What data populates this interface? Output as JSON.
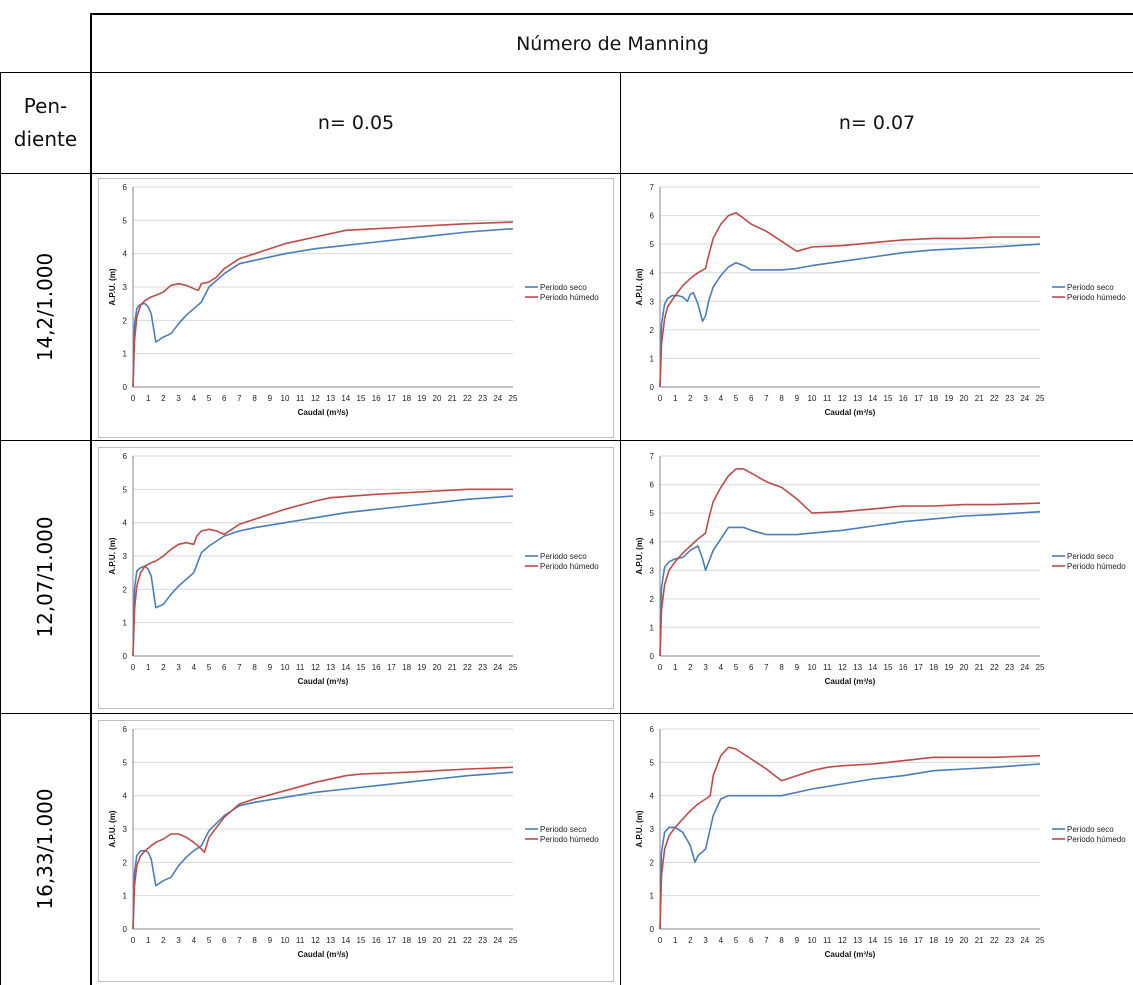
{
  "table": {
    "header": "Número de Manning",
    "pendiente_label_1": "Pen-",
    "pendiente_label_2": "diente",
    "col1": "n= 0.05",
    "col2": "n= 0.07",
    "rows": [
      "14,2/1.000",
      "12,07/1.000",
      "16,33/1.000"
    ]
  },
  "colors": {
    "seco": "#4a7ebb",
    "humedo": "#be4b48",
    "grid": "#d9d9d9",
    "border": "#000000"
  },
  "chart_data": [
    {
      "type": "line",
      "id": "r1c1",
      "xlabel": "Caudal (m³/s)",
      "ylabel": "A.P.U. (m)",
      "xlim": [
        0,
        25
      ],
      "ylim": [
        0,
        6
      ],
      "yticks": [
        0,
        1,
        2,
        3,
        4,
        5,
        6
      ],
      "legend": "right",
      "series": [
        {
          "name": "Periodo seco",
          "x": [
            0,
            0.1,
            0.25,
            0.4,
            0.6,
            0.8,
            1.0,
            1.2,
            1.5,
            2,
            2.5,
            3,
            3.5,
            4,
            4.5,
            5,
            6,
            7,
            8,
            10,
            12,
            14,
            16,
            18,
            20,
            22,
            25
          ],
          "y": [
            0,
            1.9,
            2.35,
            2.45,
            2.5,
            2.5,
            2.4,
            2.2,
            1.35,
            1.5,
            1.6,
            1.9,
            2.15,
            2.35,
            2.55,
            3.0,
            3.4,
            3.7,
            3.8,
            4.0,
            4.15,
            4.25,
            4.35,
            4.45,
            4.55,
            4.65,
            4.75
          ]
        },
        {
          "name": "Periodo húmedo",
          "x": [
            0,
            0.1,
            0.25,
            0.5,
            0.8,
            1.2,
            1.5,
            2,
            2.5,
            3,
            3.5,
            4,
            4.3,
            4.5,
            5,
            5.5,
            6,
            7,
            8,
            10,
            12,
            14,
            16,
            18,
            20,
            22,
            25
          ],
          "y": [
            0,
            1.4,
            2.1,
            2.45,
            2.6,
            2.7,
            2.75,
            2.85,
            3.05,
            3.1,
            3.05,
            2.95,
            2.9,
            3.1,
            3.15,
            3.3,
            3.55,
            3.85,
            4.0,
            4.3,
            4.5,
            4.7,
            4.75,
            4.8,
            4.85,
            4.9,
            4.95
          ]
        }
      ]
    },
    {
      "type": "line",
      "id": "r1c2",
      "xlabel": "Caudal (m³/s)",
      "ylabel": "A.P.U. (m)",
      "xlim": [
        0,
        25
      ],
      "ylim": [
        0,
        7
      ],
      "yticks": [
        0,
        1,
        2,
        3,
        4,
        5,
        6,
        7
      ],
      "legend": "right",
      "series": [
        {
          "name": "Periodo seco",
          "x": [
            0,
            0.1,
            0.3,
            0.5,
            0.8,
            1.2,
            1.5,
            1.8,
            2,
            2.2,
            2.5,
            2.8,
            3,
            3.2,
            3.5,
            4,
            4.5,
            5,
            5.5,
            6,
            7,
            8,
            9,
            10,
            12,
            14,
            16,
            18,
            20,
            22,
            25
          ],
          "y": [
            0,
            2.2,
            2.9,
            3.1,
            3.2,
            3.2,
            3.15,
            3.0,
            3.25,
            3.3,
            2.9,
            2.3,
            2.5,
            3.0,
            3.5,
            3.9,
            4.2,
            4.35,
            4.25,
            4.1,
            4.1,
            4.1,
            4.15,
            4.25,
            4.4,
            4.55,
            4.7,
            4.8,
            4.85,
            4.9,
            5.0
          ]
        },
        {
          "name": "Periodo húmedo",
          "x": [
            0,
            0.1,
            0.3,
            0.5,
            1,
            1.5,
            2,
            2.5,
            3,
            3.2,
            3.5,
            4,
            4.5,
            5,
            5.5,
            6,
            7,
            8,
            9,
            10,
            12,
            14,
            16,
            18,
            20,
            22,
            25
          ],
          "y": [
            0,
            1.5,
            2.4,
            2.8,
            3.2,
            3.55,
            3.8,
            4.0,
            4.15,
            4.6,
            5.2,
            5.7,
            6.0,
            6.1,
            5.9,
            5.7,
            5.45,
            5.1,
            4.75,
            4.9,
            4.95,
            5.05,
            5.15,
            5.2,
            5.2,
            5.25,
            5.25
          ]
        }
      ]
    },
    {
      "type": "line",
      "id": "r2c1",
      "xlabel": "Caudal (m³/s)",
      "ylabel": "A.P.U. (m)",
      "xlim": [
        0,
        25
      ],
      "ylim": [
        0,
        6
      ],
      "yticks": [
        0,
        1,
        2,
        3,
        4,
        5,
        6
      ],
      "legend": "right",
      "series": [
        {
          "name": "Periodo seco",
          "x": [
            0,
            0.1,
            0.25,
            0.5,
            0.8,
            1.0,
            1.2,
            1.5,
            2,
            2.5,
            3,
            3.5,
            4,
            4.5,
            5,
            6,
            7,
            8,
            10,
            12,
            14,
            16,
            18,
            20,
            22,
            25
          ],
          "y": [
            0,
            2.0,
            2.55,
            2.65,
            2.7,
            2.6,
            2.4,
            1.45,
            1.55,
            1.85,
            2.1,
            2.3,
            2.5,
            3.1,
            3.3,
            3.6,
            3.75,
            3.85,
            4.0,
            4.15,
            4.3,
            4.4,
            4.5,
            4.6,
            4.7,
            4.8
          ]
        },
        {
          "name": "Periodo húmedo",
          "x": [
            0,
            0.1,
            0.25,
            0.5,
            0.8,
            1.2,
            1.5,
            2,
            2.5,
            3,
            3.5,
            4,
            4.2,
            4.5,
            5,
            5.5,
            6,
            7,
            8,
            10,
            12,
            13,
            16,
            18,
            20,
            22,
            25
          ],
          "y": [
            0,
            1.4,
            2.1,
            2.5,
            2.7,
            2.8,
            2.85,
            3.0,
            3.2,
            3.35,
            3.4,
            3.35,
            3.6,
            3.75,
            3.8,
            3.75,
            3.65,
            3.95,
            4.1,
            4.4,
            4.65,
            4.75,
            4.85,
            4.9,
            4.95,
            5.0,
            5.0
          ]
        }
      ]
    },
    {
      "type": "line",
      "id": "r2c2",
      "xlabel": "Caudal (m³/s)",
      "ylabel": "A.P.U. (m)",
      "xlim": [
        0,
        25
      ],
      "ylim": [
        0,
        7
      ],
      "yticks": [
        0,
        1,
        2,
        3,
        4,
        5,
        6,
        7
      ],
      "legend": "right",
      "series": [
        {
          "name": "Periodo seco",
          "x": [
            0,
            0.1,
            0.3,
            0.6,
            1,
            1.5,
            2,
            2.5,
            2.8,
            3,
            3.5,
            4,
            4.5,
            5,
            5.5,
            6,
            7,
            8,
            9,
            10,
            12,
            14,
            16,
            18,
            20,
            22,
            25
          ],
          "y": [
            0,
            2.4,
            3.1,
            3.3,
            3.4,
            3.45,
            3.7,
            3.85,
            3.4,
            3.0,
            3.7,
            4.1,
            4.5,
            4.5,
            4.5,
            4.4,
            4.25,
            4.25,
            4.25,
            4.3,
            4.4,
            4.55,
            4.7,
            4.8,
            4.9,
            4.95,
            5.05
          ]
        },
        {
          "name": "Periodo húmedo",
          "x": [
            0,
            0.1,
            0.3,
            0.6,
            1,
            1.5,
            2,
            2.5,
            3,
            3.2,
            3.5,
            4,
            4.5,
            5,
            5.5,
            6,
            7,
            8,
            9,
            10,
            12,
            14,
            16,
            18,
            20,
            22,
            25
          ],
          "y": [
            0,
            1.6,
            2.5,
            3.0,
            3.3,
            3.6,
            3.85,
            4.1,
            4.3,
            4.8,
            5.4,
            5.9,
            6.3,
            6.55,
            6.55,
            6.4,
            6.1,
            5.9,
            5.5,
            5.0,
            5.05,
            5.15,
            5.25,
            5.25,
            5.3,
            5.3,
            5.35
          ]
        }
      ]
    },
    {
      "type": "line",
      "id": "r3c1",
      "xlabel": "Caudal (m³/s)",
      "ylabel": "A.P.U. (m)",
      "xlim": [
        0,
        25
      ],
      "ylim": [
        0,
        6
      ],
      "yticks": [
        0,
        1,
        2,
        3,
        4,
        5,
        6
      ],
      "legend": "right",
      "series": [
        {
          "name": "Periodo seco",
          "x": [
            0,
            0.1,
            0.25,
            0.5,
            0.8,
            1.0,
            1.2,
            1.5,
            2,
            2.5,
            3,
            3.5,
            4,
            4.5,
            5,
            6,
            7,
            8,
            10,
            12,
            14,
            16,
            18,
            20,
            22,
            25
          ],
          "y": [
            0,
            1.7,
            2.2,
            2.35,
            2.35,
            2.3,
            2.1,
            1.3,
            1.45,
            1.55,
            1.9,
            2.15,
            2.35,
            2.5,
            2.95,
            3.4,
            3.7,
            3.8,
            3.95,
            4.1,
            4.2,
            4.3,
            4.4,
            4.5,
            4.6,
            4.7
          ]
        },
        {
          "name": "Periodo húmedo",
          "x": [
            0,
            0.1,
            0.25,
            0.5,
            0.8,
            1.2,
            1.5,
            2,
            2.5,
            3,
            3.5,
            4,
            4.5,
            4.7,
            5,
            5.5,
            6,
            7,
            8,
            10,
            12,
            14,
            15,
            18,
            20,
            22,
            25
          ],
          "y": [
            0,
            1.3,
            1.9,
            2.2,
            2.35,
            2.5,
            2.6,
            2.7,
            2.85,
            2.85,
            2.75,
            2.6,
            2.4,
            2.3,
            2.75,
            3.05,
            3.35,
            3.75,
            3.9,
            4.15,
            4.4,
            4.6,
            4.65,
            4.7,
            4.75,
            4.8,
            4.85
          ]
        }
      ]
    },
    {
      "type": "line",
      "id": "r3c2",
      "xlabel": "Caudal (m³/s)",
      "ylabel": "A.P.U. (m)",
      "xlim": [
        0,
        25
      ],
      "ylim": [
        0,
        6
      ],
      "yticks": [
        0,
        1,
        2,
        3,
        4,
        5,
        6
      ],
      "legend": "right",
      "series": [
        {
          "name": "Periodo seco",
          "x": [
            0,
            0.1,
            0.3,
            0.6,
            1,
            1.5,
            2,
            2.3,
            2.5,
            3,
            3.5,
            4,
            4.5,
            5,
            6,
            7,
            8,
            10,
            12,
            14,
            16,
            18,
            20,
            22,
            25
          ],
          "y": [
            0,
            2.3,
            2.9,
            3.05,
            3.05,
            2.9,
            2.5,
            2.0,
            2.2,
            2.4,
            3.4,
            3.9,
            4.0,
            4.0,
            4.0,
            4.0,
            4.0,
            4.2,
            4.35,
            4.5,
            4.6,
            4.75,
            4.8,
            4.85,
            4.95
          ]
        },
        {
          "name": "Periodo húmedo",
          "x": [
            0,
            0.1,
            0.3,
            0.6,
            1,
            1.5,
            2,
            2.5,
            3,
            3.3,
            3.5,
            4,
            4.5,
            5,
            5.5,
            6,
            7,
            8,
            9,
            10,
            11,
            12,
            14,
            16,
            18,
            20,
            22,
            25
          ],
          "y": [
            0,
            1.6,
            2.4,
            2.8,
            3.05,
            3.3,
            3.55,
            3.75,
            3.9,
            4.0,
            4.6,
            5.2,
            5.45,
            5.4,
            5.25,
            5.1,
            4.8,
            4.45,
            4.6,
            4.75,
            4.85,
            4.9,
            4.95,
            5.05,
            5.15,
            5.15,
            5.15,
            5.2
          ]
        }
      ]
    }
  ]
}
